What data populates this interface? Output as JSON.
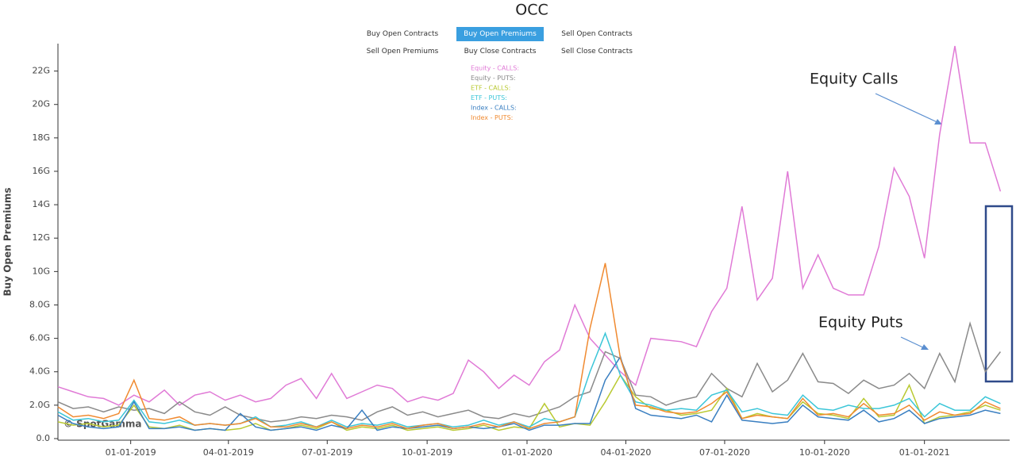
{
  "chart_data": {
    "type": "line",
    "title": "OCC",
    "y_label": "Buy Open Premiums",
    "watermark": "© SpotGamma",
    "annotations": [
      "Equity Calls",
      "Equity Puts"
    ],
    "x": [
      "10-26-2018",
      "11-09-2018",
      "11-23-2018",
      "12-07-2018",
      "12-21-2018",
      "01-04-2019",
      "01-18-2019",
      "02-01-2019",
      "02-15-2019",
      "03-01-2019",
      "03-15-2019",
      "03-29-2019",
      "04-12-2019",
      "04-26-2019",
      "05-10-2019",
      "05-24-2019",
      "06-07-2019",
      "06-21-2019",
      "07-05-2019",
      "07-19-2019",
      "08-02-2019",
      "08-16-2019",
      "08-30-2019",
      "09-13-2019",
      "09-27-2019",
      "10-11-2019",
      "10-25-2019",
      "11-08-2019",
      "11-22-2019",
      "12-06-2019",
      "12-20-2019",
      "01-03-2020",
      "01-17-2020",
      "01-31-2020",
      "02-14-2020",
      "02-28-2020",
      "03-13-2020",
      "03-27-2020",
      "04-10-2020",
      "04-24-2020",
      "05-08-2020",
      "05-22-2020",
      "06-05-2020",
      "06-19-2020",
      "07-03-2020",
      "07-17-2020",
      "07-31-2020",
      "08-14-2020",
      "08-28-2020",
      "09-11-2020",
      "09-25-2020",
      "10-09-2020",
      "10-23-2020",
      "11-06-2020",
      "11-20-2020",
      "12-04-2020",
      "12-18-2020",
      "01-01-2021",
      "01-15-2021",
      "01-29-2021",
      "02-12-2021",
      "02-26-2021",
      "03-12-2021"
    ],
    "xlim": [
      "10-26-2018",
      "03-19-2021"
    ],
    "xticks": [
      "01-01-2019",
      "04-01-2019",
      "07-01-2019",
      "10-01-2019",
      "01-01-2020",
      "04-01-2020",
      "07-01-2020",
      "10-01-2020",
      "01-01-2021"
    ],
    "ylim": [
      0,
      23.5
    ],
    "yticks": [
      {
        "value": 0,
        "label": "0.0"
      },
      {
        "value": 2,
        "label": "2.0G"
      },
      {
        "value": 4,
        "label": "4.0G"
      },
      {
        "value": 6,
        "label": "6.0G"
      },
      {
        "value": 8,
        "label": "8.0G"
      },
      {
        "value": 10,
        "label": "10G"
      },
      {
        "value": 12,
        "label": "12G"
      },
      {
        "value": 14,
        "label": "14G"
      },
      {
        "value": 16,
        "label": "16G"
      },
      {
        "value": 18,
        "label": "18G"
      },
      {
        "value": 20,
        "label": "20G"
      },
      {
        "value": 22,
        "label": "22G"
      }
    ],
    "grid": false,
    "series": [
      {
        "name": "Equity - CALLS:",
        "color": "#e07ad6",
        "values": [
          3.1,
          2.8,
          2.5,
          2.4,
          2.0,
          2.6,
          2.2,
          2.9,
          2.0,
          2.6,
          2.8,
          2.3,
          2.6,
          2.2,
          2.4,
          3.2,
          3.6,
          2.4,
          3.9,
          2.4,
          2.8,
          3.2,
          3.0,
          2.2,
          2.5,
          2.3,
          2.7,
          4.7,
          4.0,
          3.0,
          3.8,
          3.2,
          4.6,
          5.3,
          8.0,
          6.0,
          5.0,
          4.0,
          3.2,
          6.0,
          5.9,
          5.8,
          5.5,
          7.6,
          9.0,
          13.9,
          8.3,
          9.6,
          16.0,
          9.0,
          11.0,
          9.0,
          8.6,
          8.6,
          11.5,
          16.2,
          14.5,
          10.8,
          18.2,
          23.5,
          17.7,
          17.7,
          14.8
        ]
      },
      {
        "name": "Equity - PUTS:",
        "color": "#8a8a8a",
        "values": [
          2.2,
          1.8,
          1.9,
          1.6,
          1.9,
          1.7,
          1.8,
          1.5,
          2.2,
          1.6,
          1.4,
          1.9,
          1.4,
          1.2,
          1.0,
          1.1,
          1.3,
          1.2,
          1.4,
          1.3,
          1.1,
          1.6,
          1.9,
          1.4,
          1.6,
          1.3,
          1.5,
          1.7,
          1.3,
          1.2,
          1.5,
          1.3,
          1.6,
          1.9,
          2.5,
          2.8,
          5.2,
          4.8,
          2.6,
          2.5,
          2.0,
          2.3,
          2.5,
          3.9,
          3.0,
          2.5,
          4.5,
          2.8,
          3.5,
          5.1,
          3.4,
          3.3,
          2.7,
          3.5,
          3.0,
          3.2,
          3.9,
          3.0,
          5.1,
          3.4,
          6.9,
          4.0,
          5.2
        ]
      },
      {
        "name": "ETF - CALLS:",
        "color": "#b9c932",
        "values": [
          1.0,
          0.8,
          0.9,
          0.7,
          0.8,
          2.0,
          0.7,
          0.6,
          0.8,
          0.5,
          0.6,
          0.5,
          0.6,
          0.9,
          0.5,
          0.6,
          0.8,
          0.6,
          1.0,
          0.5,
          0.7,
          0.6,
          0.8,
          0.5,
          0.6,
          0.7,
          0.5,
          0.6,
          0.8,
          0.5,
          0.7,
          0.6,
          2.1,
          0.7,
          0.9,
          0.8,
          2.2,
          3.8,
          2.5,
          1.8,
          1.7,
          1.4,
          1.5,
          1.7,
          3.0,
          1.2,
          1.5,
          1.3,
          1.2,
          2.2,
          1.5,
          1.4,
          1.2,
          2.4,
          1.3,
          1.4,
          3.2,
          0.9,
          1.3,
          1.4,
          1.6,
          2.0,
          1.7
        ]
      },
      {
        "name": "ETF - PUTS:",
        "color": "#3cc6d8",
        "values": [
          1.6,
          1.1,
          1.2,
          1.0,
          1.1,
          2.3,
          1.0,
          0.9,
          1.1,
          0.8,
          0.9,
          0.8,
          0.9,
          1.3,
          0.7,
          0.8,
          1.0,
          0.7,
          1.1,
          0.7,
          0.9,
          0.8,
          1.0,
          0.7,
          0.8,
          0.9,
          0.7,
          0.8,
          1.1,
          0.8,
          1.0,
          0.7,
          1.2,
          1.0,
          1.3,
          4.0,
          6.3,
          3.8,
          2.2,
          2.0,
          1.7,
          1.8,
          1.7,
          2.6,
          2.9,
          1.6,
          1.8,
          1.5,
          1.4,
          2.6,
          1.8,
          1.7,
          2.0,
          1.8,
          1.8,
          2.0,
          2.4,
          1.3,
          2.1,
          1.7,
          1.7,
          2.5,
          2.1
        ]
      },
      {
        "name": "Index - CALLS:",
        "color": "#3a7fc1",
        "values": [
          1.4,
          0.9,
          0.7,
          0.6,
          0.7,
          2.2,
          0.6,
          0.6,
          0.7,
          0.5,
          0.6,
          0.5,
          1.5,
          0.7,
          0.5,
          0.6,
          0.7,
          0.5,
          0.8,
          0.6,
          1.7,
          0.5,
          0.7,
          0.6,
          0.7,
          0.8,
          0.6,
          0.7,
          0.6,
          0.7,
          0.9,
          0.5,
          0.8,
          0.8,
          0.9,
          0.9,
          3.5,
          4.9,
          1.8,
          1.4,
          1.3,
          1.2,
          1.4,
          1.0,
          2.6,
          1.1,
          1.0,
          0.9,
          1.0,
          2.0,
          1.3,
          1.2,
          1.1,
          1.7,
          1.0,
          1.2,
          1.7,
          0.9,
          1.2,
          1.3,
          1.4,
          1.7,
          1.5
        ]
      },
      {
        "name": "Index - PUTS:",
        "color": "#f08a30",
        "values": [
          1.9,
          1.3,
          1.4,
          1.2,
          1.5,
          3.5,
          1.2,
          1.1,
          1.3,
          0.8,
          0.9,
          0.8,
          0.9,
          1.2,
          0.7,
          0.7,
          0.9,
          0.7,
          1.0,
          0.6,
          0.8,
          0.7,
          0.9,
          0.6,
          0.8,
          0.9,
          0.6,
          0.7,
          0.9,
          0.7,
          1.0,
          0.6,
          0.9,
          1.0,
          1.3,
          6.6,
          10.5,
          4.8,
          2.0,
          1.9,
          1.6,
          1.5,
          1.6,
          2.1,
          2.8,
          1.2,
          1.4,
          1.3,
          1.2,
          2.4,
          1.4,
          1.5,
          1.3,
          2.1,
          1.4,
          1.5,
          2.0,
          1.1,
          1.6,
          1.4,
          1.5,
          2.2,
          1.8
        ]
      }
    ]
  },
  "controls": {
    "buttons": [
      "Buy Open Contracts",
      "Buy Open Premiums",
      "Sell Open Contracts",
      "Sell Open Premiums",
      "Buy Close Contracts",
      "Sell Close Contracts"
    ],
    "selected": 1
  }
}
